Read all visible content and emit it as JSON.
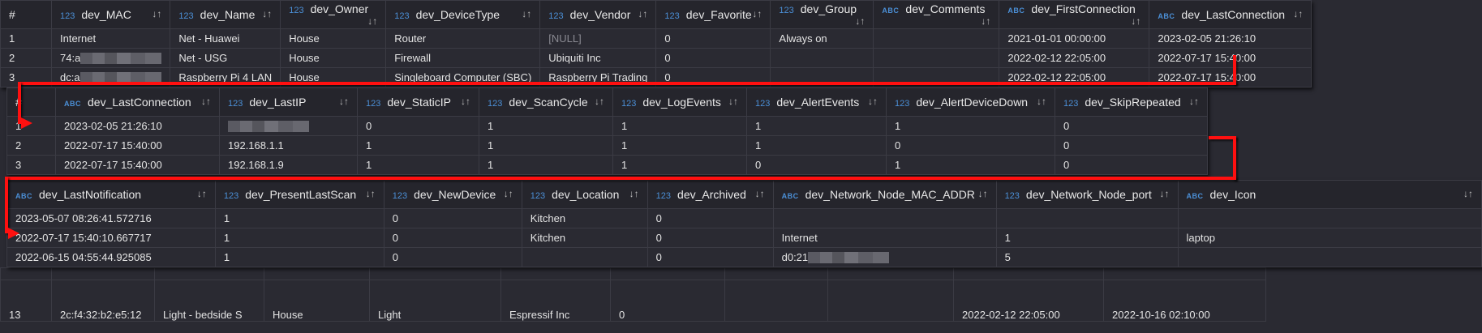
{
  "colors": {
    "background": "#2a2a32",
    "header": "#25252c",
    "type_label": "#4b8fd6",
    "arrow": "#ff1010",
    "null_text": "#8a8a92"
  },
  "sort_icon": "sort-arrows-icon",
  "panels": [
    {
      "id": "table-part-1",
      "columns": [
        {
          "label": "#",
          "type": ""
        },
        {
          "label": "dev_MAC",
          "type": "123"
        },
        {
          "label": "dev_Name",
          "type": "123"
        },
        {
          "label": "dev_Owner",
          "type": "123"
        },
        {
          "label": "dev_DeviceType",
          "type": "123"
        },
        {
          "label": "dev_Vendor",
          "type": "123"
        },
        {
          "label": "dev_Favorite",
          "type": "123"
        },
        {
          "label": "dev_Group",
          "type": "123"
        },
        {
          "label": "dev_Comments",
          "type": "ABC"
        },
        {
          "label": "dev_FirstConnection",
          "type": "ABC"
        },
        {
          "label": "dev_LastConnection",
          "type": "ABC"
        }
      ],
      "rows": [
        [
          "1",
          "Internet",
          "Net - Huawei",
          "House",
          "Router",
          {
            "text": "[NULL]",
            "null": true
          },
          "0",
          "Always on",
          "",
          "2021-01-01 00:00:00",
          "2023-02-05 21:26:10"
        ],
        [
          "2",
          {
            "text": "74:a",
            "blurred": true
          },
          "Net - USG",
          "House",
          "Firewall",
          "Ubiquiti Inc",
          "0",
          "",
          "",
          "2022-02-12 22:05:00",
          "2022-07-17 15:40:00"
        ],
        [
          "3",
          {
            "text": "dc:a",
            "blurred": true
          },
          "Raspberry Pi 4 LAN",
          "House",
          "Singleboard Computer (SBC)",
          "Raspberry Pi Trading",
          "0",
          "",
          "",
          "2022-02-12 22:05:00",
          "2022-07-17 15:40:00"
        ]
      ]
    },
    {
      "id": "table-part-2",
      "columns": [
        {
          "label": "#",
          "type": ""
        },
        {
          "label": "dev_LastConnection",
          "type": "ABC"
        },
        {
          "label": "dev_LastIP",
          "type": "123"
        },
        {
          "label": "dev_StaticIP",
          "type": "123"
        },
        {
          "label": "dev_ScanCycle",
          "type": "123"
        },
        {
          "label": "dev_LogEvents",
          "type": "123"
        },
        {
          "label": "dev_AlertEvents",
          "type": "123"
        },
        {
          "label": "dev_AlertDeviceDown",
          "type": "123"
        },
        {
          "label": "dev_SkipRepeated",
          "type": "123"
        }
      ],
      "rows": [
        [
          "1",
          "2023-02-05 21:26:10",
          {
            "text": "",
            "blurred": true
          },
          "0",
          "1",
          "1",
          "1",
          "1",
          "0"
        ],
        [
          "2",
          "2022-07-17 15:40:00",
          "192.168.1.1",
          "1",
          "1",
          "1",
          "1",
          "0",
          "0"
        ],
        [
          "3",
          "2022-07-17 15:40:00",
          "192.168.1.9",
          "1",
          "1",
          "1",
          "0",
          "1",
          "0"
        ]
      ]
    },
    {
      "id": "table-part-3",
      "columns": [
        {
          "label": "dev_LastNotification",
          "type": "ABC"
        },
        {
          "label": "dev_PresentLastScan",
          "type": "123"
        },
        {
          "label": "dev_NewDevice",
          "type": "123"
        },
        {
          "label": "dev_Location",
          "type": "123"
        },
        {
          "label": "dev_Archived",
          "type": "123"
        },
        {
          "label": "dev_Network_Node_MAC_ADDR",
          "type": "ABC"
        },
        {
          "label": "dev_Network_Node_port",
          "type": "123"
        },
        {
          "label": "dev_Icon",
          "type": "ABC"
        }
      ],
      "rows": [
        [
          "2023-05-07 08:26:41.572716",
          "1",
          "0",
          "Kitchen",
          "0",
          "",
          "",
          ""
        ],
        [
          "2022-07-17 15:40:10.667717",
          "1",
          "0",
          "Kitchen",
          "0",
          "Internet",
          "1",
          "laptop"
        ],
        [
          "2022-06-15 04:55:44.925085",
          "1",
          "0",
          "",
          "0",
          {
            "text": "d0:21",
            "blurred": true
          },
          "5",
          ""
        ]
      ]
    }
  ],
  "background_row": [
    "13",
    "2c:f4:32:b2:e5:12",
    "Light - bedside S",
    "House",
    "Light",
    "Espressif Inc",
    "0",
    "",
    "",
    "2022-02-12 22:05:00",
    "2022-10-16 02:10:00"
  ]
}
